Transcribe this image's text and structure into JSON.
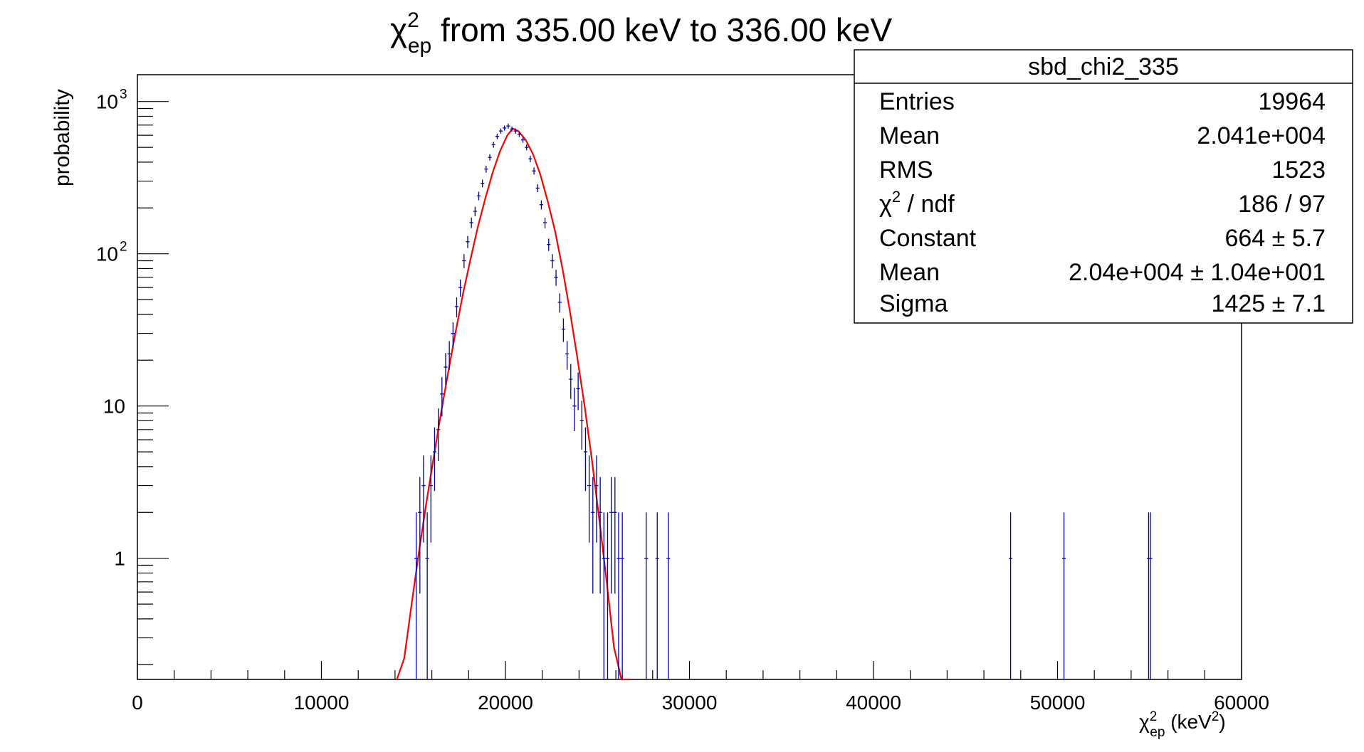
{
  "chart_data": {
    "type": "histogram",
    "title": {
      "symbol": "χ",
      "superscript": "2",
      "subscript": "ep",
      "text": " from 335.00 keV to 336.00 keV"
    },
    "xlabel": {
      "symbol": "χ",
      "superscript": "2",
      "subscript": "ep",
      "text": " (keV",
      "unit_superscript": "2",
      "text_end": ")"
    },
    "ylabel": "probability",
    "xlim": [
      0,
      60000
    ],
    "ylim": [
      0.16,
      1500
    ],
    "yscale": "log",
    "grid": false,
    "x_ticks": [
      0,
      10000,
      20000,
      30000,
      40000,
      50000,
      60000
    ],
    "x_tick_labels": [
      "0",
      "10000",
      "20000",
      "30000",
      "40000",
      "50000",
      "60000"
    ],
    "y_ticks": [
      1,
      10,
      100,
      1000
    ],
    "y_tick_labels": [
      {
        "base": "1",
        "exp": ""
      },
      {
        "base": "10",
        "exp": ""
      },
      {
        "base": "10",
        "exp": "2"
      },
      {
        "base": "10",
        "exp": "3"
      }
    ],
    "histogram_color": "#000099",
    "fit_color": "#ff0000",
    "bin_width": 200,
    "histogram": {
      "x": [
        15150,
        15350,
        15550,
        15750,
        15950,
        16150,
        16350,
        16550,
        16750,
        16950,
        17150,
        17350,
        17550,
        17750,
        17950,
        18150,
        18350,
        18550,
        18750,
        18950,
        19150,
        19350,
        19550,
        19750,
        19950,
        20150,
        20350,
        20550,
        20750,
        20950,
        21150,
        21350,
        21550,
        21750,
        21950,
        22150,
        22350,
        22550,
        22750,
        22950,
        23150,
        23350,
        23550,
        23750,
        23950,
        24150,
        24350,
        24550,
        24750,
        24950,
        25150,
        25350,
        25550,
        25750,
        25950,
        26150,
        26350,
        27650,
        28250,
        28850,
        47450,
        50350,
        54950,
        55050
      ],
      "y": [
        1,
        2,
        3,
        1,
        3,
        5,
        7,
        12,
        18,
        22,
        30,
        45,
        60,
        90,
        120,
        160,
        190,
        240,
        290,
        360,
        430,
        520,
        590,
        640,
        670,
        690,
        660,
        640,
        610,
        560,
        500,
        420,
        350,
        270,
        210,
        160,
        115,
        90,
        70,
        48,
        32,
        22,
        15,
        10,
        13,
        8,
        5,
        3,
        2,
        3,
        2,
        1,
        1,
        2,
        2,
        1,
        1,
        1,
        1,
        1,
        1,
        1,
        1,
        1
      ]
    },
    "fit_curve": {
      "x": [
        14100,
        14500,
        14900,
        15300,
        15700,
        16100,
        16500,
        16900,
        17300,
        17700,
        18100,
        18500,
        18900,
        19300,
        19700,
        20100,
        20400,
        20700,
        21100,
        21500,
        21900,
        22300,
        22700,
        23100,
        23500,
        23900,
        24300,
        24700,
        25100,
        25500,
        25900,
        26300,
        26700
      ],
      "y": [
        0.16,
        0.22,
        0.5,
        1.1,
        2.3,
        4.6,
        9,
        17,
        31,
        55,
        92,
        150,
        230,
        340,
        470,
        600,
        664,
        640,
        560,
        450,
        330,
        220,
        140,
        80,
        42,
        21,
        10,
        4.4,
        1.8,
        0.7,
        0.26,
        0.16,
        0.16
      ]
    },
    "stats_box": {
      "title": "sbd_chi2_335",
      "rows": [
        {
          "label": "Entries",
          "value": "19964"
        },
        {
          "label": "Mean",
          "value": "2.041e+004"
        },
        {
          "label": "RMS",
          "value": "1523"
        },
        {
          "label": "χ",
          "label_sup": "2",
          "label_rest": " / ndf",
          "value": "186 / 97"
        },
        {
          "label": "Constant",
          "value": "664 ± 5.7"
        },
        {
          "label": "Mean",
          "value": "2.04e+004 ± 1.04e+001"
        },
        {
          "label": "Sigma",
          "value": "1425 ± 7.1"
        }
      ],
      "placement": "top-right"
    }
  }
}
